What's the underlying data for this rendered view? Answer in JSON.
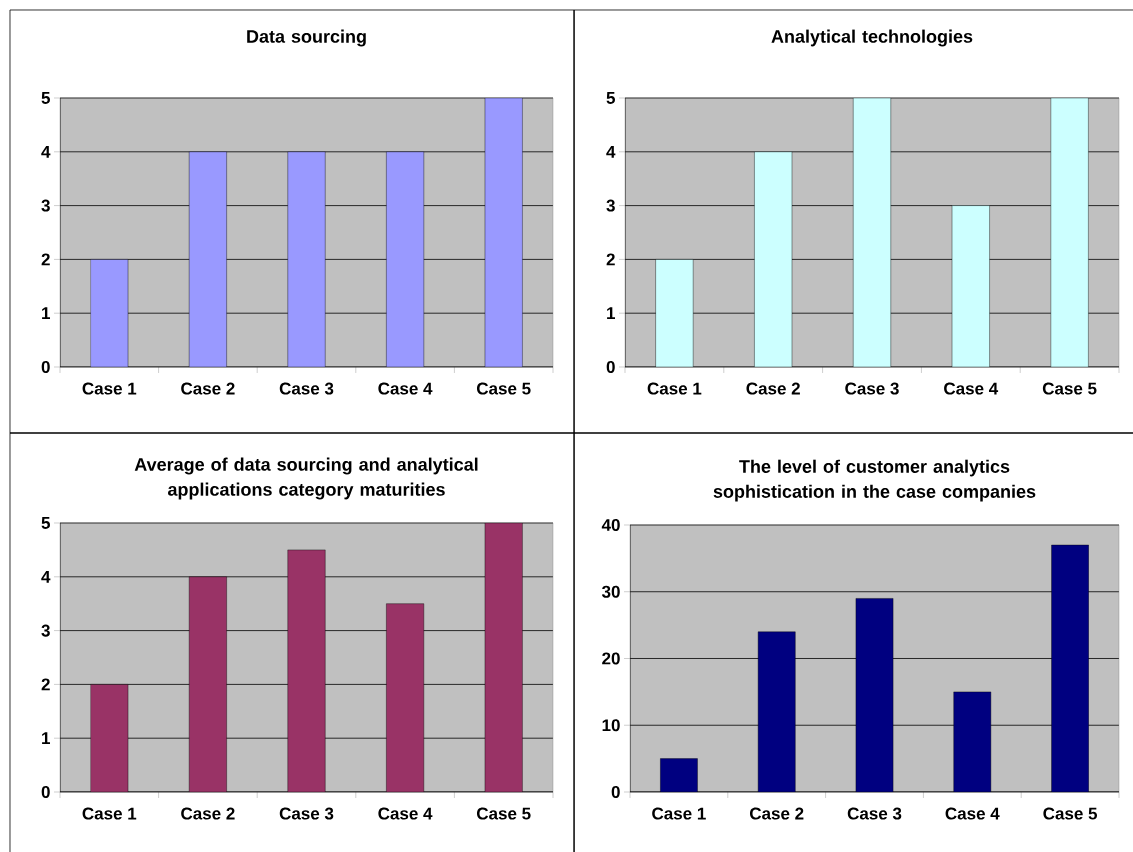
{
  "chart_data": [
    {
      "type": "bar",
      "title": "Data sourcing",
      "categories": [
        "Case 1",
        "Case 2",
        "Case 3",
        "Case 4",
        "Case 5"
      ],
      "values": [
        2,
        4,
        4,
        4,
        5
      ],
      "color": "#9999ff",
      "ylim": [
        0,
        5
      ],
      "yticks": [
        0,
        1,
        2,
        3,
        4,
        5
      ],
      "grid": "y"
    },
    {
      "type": "bar",
      "title": "Analytical technologies",
      "categories": [
        "Case 1",
        "Case 2",
        "Case 3",
        "Case 4",
        "Case 5"
      ],
      "values": [
        2,
        4,
        5,
        3,
        5
      ],
      "color": "#ccffff",
      "ylim": [
        0,
        5
      ],
      "yticks": [
        0,
        1,
        2,
        3,
        4,
        5
      ],
      "grid": "y"
    },
    {
      "type": "bar",
      "title": "Average of data sourcing and analytical applications category maturities",
      "categories": [
        "Case 1",
        "Case 2",
        "Case 3",
        "Case 4",
        "Case 5"
      ],
      "values": [
        2,
        4,
        4.5,
        3.5,
        5
      ],
      "color": "#993366",
      "ylim": [
        0,
        5
      ],
      "yticks": [
        0,
        1,
        2,
        3,
        4,
        5
      ],
      "grid": "y"
    },
    {
      "type": "bar",
      "title": "The level of customer analytics sophistication in the case companies",
      "categories": [
        "Case 1",
        "Case 2",
        "Case 3",
        "Case 4",
        "Case 5"
      ],
      "values": [
        5,
        24,
        29,
        15,
        37
      ],
      "color": "#000080",
      "ylim": [
        0,
        40
      ],
      "yticks": [
        0,
        10,
        20,
        30,
        40
      ],
      "grid": "y"
    }
  ]
}
